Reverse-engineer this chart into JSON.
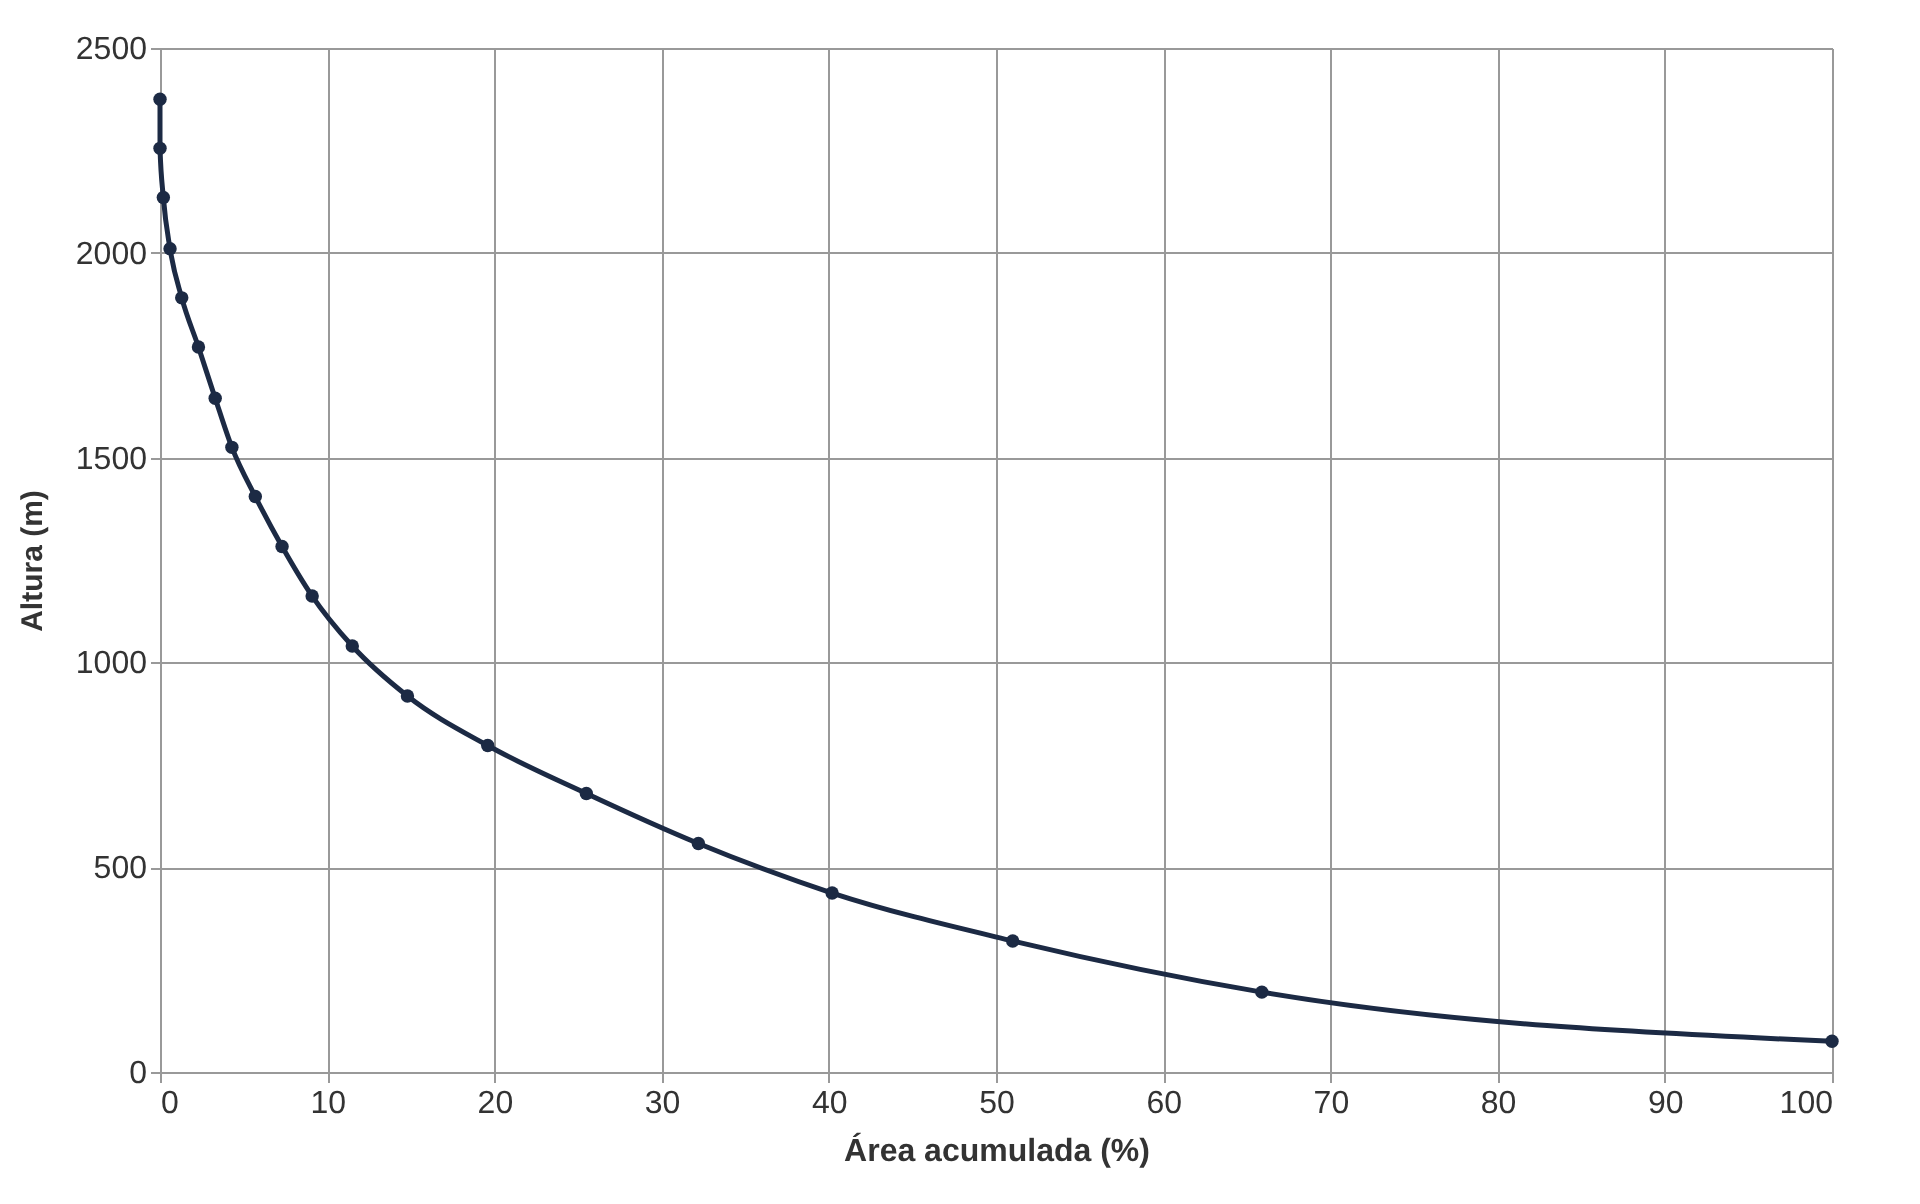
{
  "chart_data": {
    "type": "line",
    "xlabel": "Área acumulada  (%)",
    "ylabel": "Altura  (m)",
    "x": [
      0,
      0,
      0.2,
      0.6,
      1.3,
      2.3,
      3.3,
      4.3,
      5.7,
      7.3,
      9.1,
      11.5,
      14.8,
      19.6,
      25.5,
      32.2,
      40.2,
      51,
      65.9,
      100
    ],
    "series": [
      {
        "color": "#1c2a44",
        "values": [
          2375,
          2255,
          2135,
          2010,
          1890,
          1770,
          1645,
          1525,
          1405,
          1283,
          1162,
          1040,
          918,
          797,
          680,
          558,
          437,
          320,
          195,
          75
        ]
      }
    ],
    "xlim": [
      0,
      100
    ],
    "xticks": [
      0,
      10,
      20,
      30,
      40,
      50,
      60,
      70,
      80,
      90,
      100
    ],
    "ylim": [
      0,
      2500
    ],
    "yticks": [
      0,
      500,
      1000,
      1500,
      2000,
      2500
    ],
    "grid": true,
    "marker": "circle",
    "line_style": "solid"
  }
}
